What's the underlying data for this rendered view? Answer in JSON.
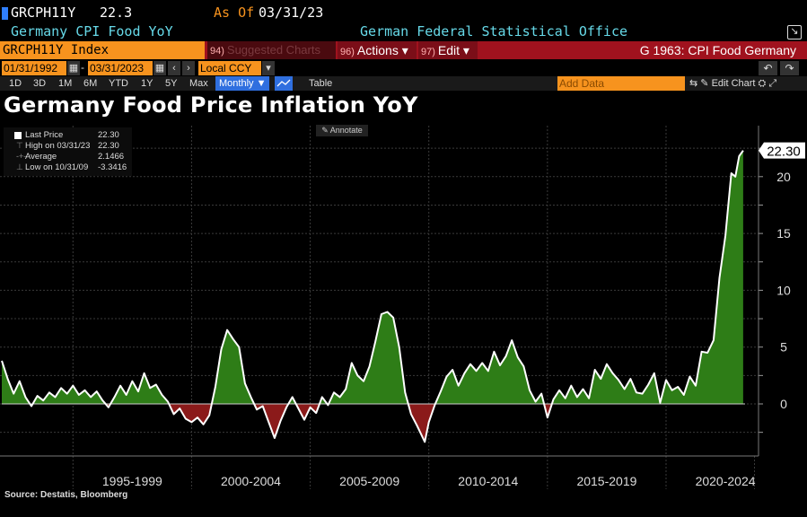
{
  "header": {
    "ticker": "GRCPH11Y",
    "price": "22.3",
    "as_of_label": "As Of",
    "as_of_date": "03/31/23",
    "description": "Germany CPI Food YoY",
    "source_office": "German Federal Statistical Office",
    "index_label": "GRCPH11Y Index",
    "suggested_num": "94)",
    "suggested_label": "Suggested Charts",
    "actions_num": "96)",
    "actions_label": "Actions ▾",
    "edit_num": "97)",
    "edit_label": "Edit ▾",
    "graph_title": "G 1963: CPI Food Germany",
    "start_date": "01/31/1992",
    "end_date": "03/31/2023",
    "currency": "Local CCY",
    "periods": [
      "1D",
      "3D",
      "1M",
      "6M",
      "YTD",
      "1Y",
      "5Y",
      "Max"
    ],
    "frequency": "Monthly ▼",
    "table_label": "Table",
    "add_data_placeholder": "Add Data",
    "edit_chart_label": "Edit Chart"
  },
  "legend": {
    "items": [
      {
        "name": "Last Price",
        "value": "22.30"
      },
      {
        "name": "High on 03/31/23",
        "value": "22.30"
      },
      {
        "name": "Average",
        "value": "2.1466"
      },
      {
        "name": "Low on 10/31/09",
        "value": "-3.3416"
      }
    ],
    "annotate_label": "Annotate"
  },
  "colors": {
    "positive_fill": "#2e7d17",
    "negative_fill": "#8b1a1a",
    "line": "#ffffff",
    "accent_orange": "#f7931e",
    "header_red": "#a0121e",
    "cyan_text": "#66d9e8"
  },
  "chart_data": {
    "type": "area",
    "title": "Germany Food Price Inflation YoY",
    "x_categories": [
      "1995-1999",
      "2000-2004",
      "2005-2009",
      "2010-2014",
      "2015-2019",
      "2020-2024"
    ],
    "y_ticks": [
      0,
      5,
      10,
      15,
      20
    ],
    "ylim": [
      -4.5,
      25
    ],
    "last_value_label": "22.30",
    "series": [
      {
        "values": [
          [
            1992.0,
            3.8
          ],
          [
            1992.25,
            2.2
          ],
          [
            1992.5,
            0.9
          ],
          [
            1992.75,
            2.0
          ],
          [
            1993.0,
            0.6
          ],
          [
            1993.25,
            -0.2
          ],
          [
            1993.5,
            0.7
          ],
          [
            1993.75,
            0.3
          ],
          [
            1994.0,
            1.0
          ],
          [
            1994.25,
            0.6
          ],
          [
            1994.5,
            1.4
          ],
          [
            1994.75,
            0.9
          ],
          [
            1995.0,
            1.6
          ],
          [
            1995.25,
            0.8
          ],
          [
            1995.5,
            1.2
          ],
          [
            1995.75,
            0.6
          ],
          [
            1996.0,
            1.1
          ],
          [
            1996.25,
            0.3
          ],
          [
            1996.5,
            -0.3
          ],
          [
            1996.75,
            0.6
          ],
          [
            1997.0,
            1.6
          ],
          [
            1997.25,
            0.8
          ],
          [
            1997.5,
            2.0
          ],
          [
            1997.75,
            1.1
          ],
          [
            1998.0,
            2.7
          ],
          [
            1998.25,
            1.4
          ],
          [
            1998.5,
            1.7
          ],
          [
            1998.75,
            0.8
          ],
          [
            1999.0,
            0.2
          ],
          [
            1999.25,
            -0.9
          ],
          [
            1999.5,
            -0.4
          ],
          [
            1999.75,
            -1.3
          ],
          [
            2000.0,
            -1.6
          ],
          [
            2000.25,
            -1.2
          ],
          [
            2000.5,
            -1.8
          ],
          [
            2000.75,
            -1.0
          ],
          [
            2001.0,
            1.5
          ],
          [
            2001.25,
            4.8
          ],
          [
            2001.5,
            6.5
          ],
          [
            2001.75,
            5.7
          ],
          [
            2002.0,
            5.0
          ],
          [
            2002.25,
            1.8
          ],
          [
            2002.5,
            0.6
          ],
          [
            2002.75,
            -0.5
          ],
          [
            2003.0,
            -0.2
          ],
          [
            2003.25,
            -1.6
          ],
          [
            2003.5,
            -3.0
          ],
          [
            2003.75,
            -1.5
          ],
          [
            2004.0,
            -0.3
          ],
          [
            2004.25,
            0.6
          ],
          [
            2004.5,
            -0.4
          ],
          [
            2004.75,
            -1.4
          ],
          [
            2005.0,
            -0.3
          ],
          [
            2005.25,
            -0.8
          ],
          [
            2005.5,
            0.6
          ],
          [
            2005.75,
            -0.1
          ],
          [
            2006.0,
            1.0
          ],
          [
            2006.25,
            0.6
          ],
          [
            2006.5,
            1.3
          ],
          [
            2006.75,
            3.6
          ],
          [
            2007.0,
            2.5
          ],
          [
            2007.25,
            2.0
          ],
          [
            2007.5,
            3.3
          ],
          [
            2007.75,
            5.5
          ],
          [
            2008.0,
            7.9
          ],
          [
            2008.25,
            8.1
          ],
          [
            2008.5,
            7.6
          ],
          [
            2008.75,
            5.0
          ],
          [
            2009.0,
            1.0
          ],
          [
            2009.25,
            -0.9
          ],
          [
            2009.5,
            -1.9
          ],
          [
            2009.83,
            -3.34
          ],
          [
            2010.0,
            -1.6
          ],
          [
            2010.25,
            -0.1
          ],
          [
            2010.5,
            1.1
          ],
          [
            2010.75,
            2.4
          ],
          [
            2011.0,
            3.0
          ],
          [
            2011.25,
            1.6
          ],
          [
            2011.5,
            2.7
          ],
          [
            2011.75,
            3.5
          ],
          [
            2012.0,
            2.9
          ],
          [
            2012.25,
            3.6
          ],
          [
            2012.5,
            2.9
          ],
          [
            2012.75,
            4.6
          ],
          [
            2013.0,
            3.4
          ],
          [
            2013.25,
            4.2
          ],
          [
            2013.5,
            5.6
          ],
          [
            2013.75,
            4.1
          ],
          [
            2014.0,
            3.3
          ],
          [
            2014.25,
            1.2
          ],
          [
            2014.5,
            0.2
          ],
          [
            2014.75,
            0.9
          ],
          [
            2015.0,
            -1.2
          ],
          [
            2015.25,
            0.4
          ],
          [
            2015.5,
            1.2
          ],
          [
            2015.75,
            0.5
          ],
          [
            2016.0,
            1.6
          ],
          [
            2016.25,
            0.6
          ],
          [
            2016.5,
            1.3
          ],
          [
            2016.75,
            0.5
          ],
          [
            2017.0,
            3.0
          ],
          [
            2017.25,
            2.2
          ],
          [
            2017.5,
            3.5
          ],
          [
            2017.75,
            2.7
          ],
          [
            2018.0,
            2.1
          ],
          [
            2018.25,
            1.3
          ],
          [
            2018.5,
            2.2
          ],
          [
            2018.75,
            1.0
          ],
          [
            2019.0,
            0.9
          ],
          [
            2019.25,
            1.7
          ],
          [
            2019.5,
            2.7
          ],
          [
            2019.75,
            0.1
          ],
          [
            2020.0,
            2.1
          ],
          [
            2020.25,
            1.2
          ],
          [
            2020.5,
            1.5
          ],
          [
            2020.75,
            0.8
          ],
          [
            2021.0,
            2.4
          ],
          [
            2021.25,
            1.6
          ],
          [
            2021.5,
            4.6
          ],
          [
            2021.75,
            4.5
          ],
          [
            2022.0,
            5.6
          ],
          [
            2022.25,
            11.1
          ],
          [
            2022.5,
            14.8
          ],
          [
            2022.75,
            20.3
          ],
          [
            2022.92,
            20.0
          ],
          [
            2023.08,
            21.8
          ],
          [
            2023.25,
            22.3
          ]
        ]
      }
    ],
    "source": "Source: Destatis, Bloomberg"
  }
}
